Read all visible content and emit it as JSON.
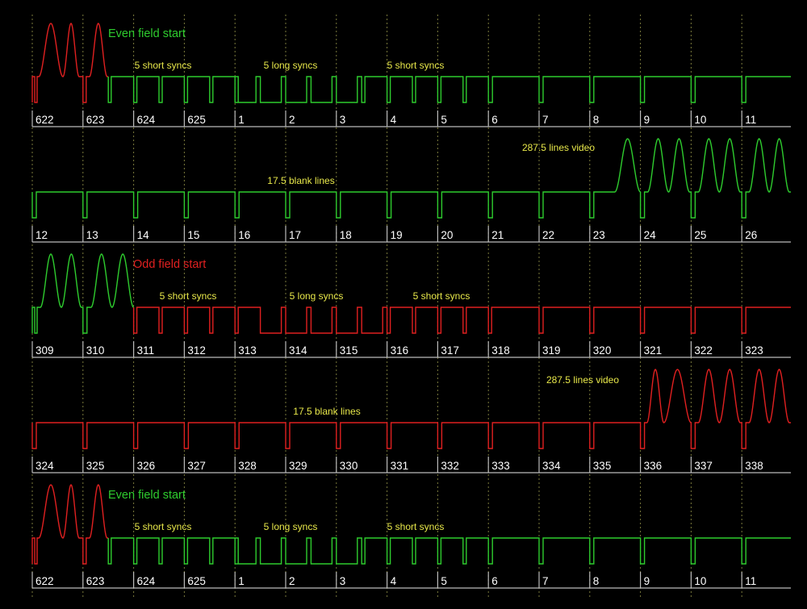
{
  "colors": {
    "background": "#000000",
    "even_field": "#2ecc2e",
    "odd_field": "#e02020",
    "annotation": "#e8e84a",
    "line_numbers": "#ffffff",
    "ruler": "#bbbbbb",
    "guide": "#7a7a3c"
  },
  "rows": [
    {
      "id": "even-top",
      "color": "even_field",
      "title": "Even field start",
      "labels": [
        "5 short syncs",
        "5 long syncs",
        "5 short syncs"
      ],
      "line_numbers": [
        "622",
        "623",
        "624",
        "625",
        "1",
        "2",
        "3",
        "4",
        "5",
        "6",
        "7",
        "8",
        "9",
        "10",
        "11"
      ]
    },
    {
      "id": "even-blank",
      "color": "even_field",
      "labels": [
        "17.5 blank lines",
        "287.5 lines video"
      ],
      "line_numbers": [
        "12",
        "13",
        "14",
        "15",
        "16",
        "17",
        "18",
        "19",
        "20",
        "21",
        "22",
        "23",
        "24",
        "25",
        "26"
      ]
    },
    {
      "id": "odd-top",
      "color": "odd_field",
      "title": "Odd field start",
      "labels": [
        "5 short syncs",
        "5 long syncs",
        "5 short syncs"
      ],
      "line_numbers": [
        "309",
        "310",
        "311",
        "312",
        "313",
        "314",
        "315",
        "316",
        "317",
        "318",
        "319",
        "320",
        "321",
        "322",
        "323"
      ]
    },
    {
      "id": "odd-blank",
      "color": "odd_field",
      "labels": [
        "17.5 blank lines",
        "287.5 lines video"
      ],
      "line_numbers": [
        "324",
        "325",
        "326",
        "327",
        "328",
        "329",
        "330",
        "331",
        "332",
        "333",
        "334",
        "335",
        "336",
        "337",
        "338"
      ]
    },
    {
      "id": "even-repeat",
      "color": "even_field",
      "title": "Even field start",
      "labels": [
        "5 short syncs",
        "5 long syncs",
        "5 short syncs"
      ],
      "line_numbers": [
        "622",
        "623",
        "624",
        "625",
        "1",
        "2",
        "3",
        "4",
        "5",
        "6",
        "7",
        "8",
        "9",
        "10",
        "11"
      ]
    }
  ]
}
